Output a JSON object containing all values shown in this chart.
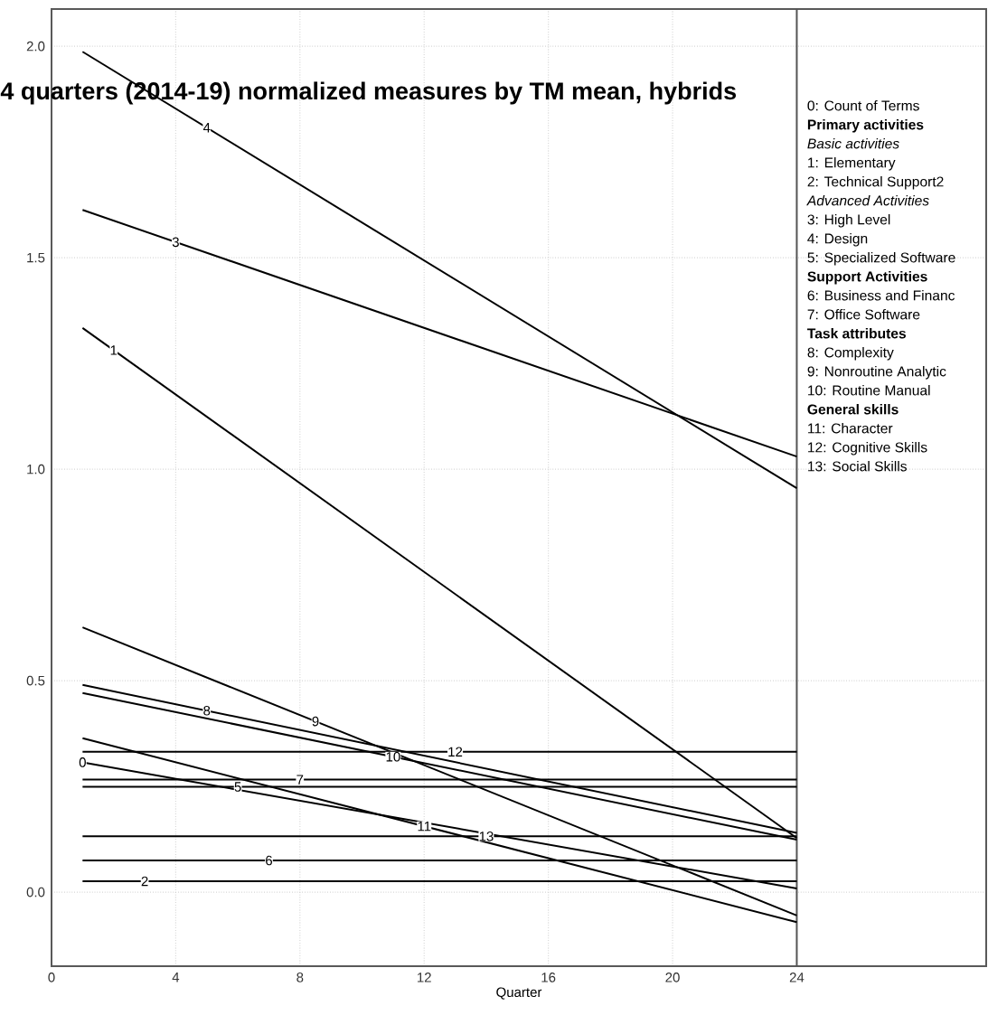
{
  "chart_data": {
    "type": "line",
    "title": "4 quarters (2014-19) normalized measures by TM mean, hybrids",
    "xlabel": "Quarter",
    "x": [
      1,
      24
    ],
    "series": [
      {
        "name": "0",
        "color": "#000000",
        "values": [
          0.307,
          0.009
        ]
      },
      {
        "name": "1",
        "color": "#000000",
        "values": [
          1.334,
          0.128
        ]
      },
      {
        "name": "2",
        "color": "#000000",
        "values": [
          0.026,
          0.026
        ]
      },
      {
        "name": "3",
        "color": "#000000",
        "values": [
          1.613,
          1.03
        ]
      },
      {
        "name": "4",
        "color": "#000000",
        "values": [
          1.987,
          0.955
        ]
      },
      {
        "name": "5",
        "color": "#000000",
        "values": [
          0.249,
          0.249
        ]
      },
      {
        "name": "6",
        "color": "#000000",
        "values": [
          0.075,
          0.075
        ]
      },
      {
        "name": "7",
        "color": "#000000",
        "values": [
          0.266,
          0.266
        ]
      },
      {
        "name": "8",
        "color": "#000000",
        "values": [
          0.49,
          0.14
        ]
      },
      {
        "name": "9",
        "color": "#000000",
        "values": [
          0.626,
          -0.055
        ]
      },
      {
        "name": "10",
        "color": "#000000",
        "values": [
          0.471,
          0.124
        ]
      },
      {
        "name": "11",
        "color": "#000000",
        "values": [
          0.364,
          -0.071
        ]
      },
      {
        "name": "12",
        "color": "#000000",
        "values": [
          0.332,
          0.332
        ]
      },
      {
        "name": "13",
        "color": "#000000",
        "values": [
          0.132,
          0.132
        ]
      }
    ],
    "xlim": [
      0,
      30.1
    ],
    "ylim": [
      -0.175,
      2.088
    ],
    "xticks": [
      0,
      4,
      8,
      12,
      16,
      20,
      24
    ],
    "yticks": [
      {
        "value": 0,
        "label": "0.0"
      },
      {
        "value": 0.5,
        "label": "0.5"
      },
      {
        "value": 1,
        "label": "1.0"
      },
      {
        "value": 1.5,
        "label": "1.5"
      },
      {
        "value": 2,
        "label": "2.0"
      }
    ],
    "grid": true,
    "ref_lines": [
      {
        "axis": "x",
        "value": 24,
        "color": "#555555"
      }
    ],
    "annotations": [
      "0: Count of Terms",
      "Primary activities",
      "Basic activities",
      "1: Elementary",
      "2: Technical Support2",
      "Advanced Activities",
      "3: High Level",
      "4: Design",
      "5: Specialized Software",
      "Support Activities",
      "6: Business and Financ",
      "7: Office Software",
      "Task attributes",
      "8: Complexity",
      "9: Nonroutine Analytic",
      "10: Routine Manual",
      "General skills",
      "11: Character",
      "12: Cognitive Skills",
      "13: Social Skills"
    ]
  }
}
